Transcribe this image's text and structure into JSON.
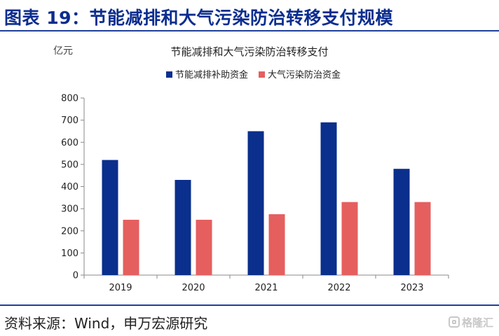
{
  "header": {
    "title": "图表 19：节能减排和大气污染防治转移支付规模"
  },
  "footer": {
    "source": "资料来源：Wind，申万宏源研究"
  },
  "watermark": {
    "icon": "gelonghui-logo-icon",
    "text": "格隆汇"
  },
  "colors": {
    "series1": "#0a2f8c",
    "series2": "#e55f5f",
    "rule": "#1f3f9a"
  },
  "chart_data": {
    "type": "bar",
    "title": "节能减排和大气污染防治转移支付",
    "ylabel": "亿元",
    "xlabel": "",
    "categories": [
      "2019",
      "2020",
      "2021",
      "2022",
      "2023"
    ],
    "ylim": [
      0,
      800
    ],
    "yticks": [
      0,
      100,
      200,
      300,
      400,
      500,
      600,
      700,
      800
    ],
    "grid": false,
    "legend_position": "top",
    "series": [
      {
        "name": "节能减排补助资金",
        "values": [
          520,
          430,
          650,
          690,
          480
        ]
      },
      {
        "name": "大气污染防治资金",
        "values": [
          250,
          250,
          275,
          330,
          330
        ]
      }
    ]
  }
}
